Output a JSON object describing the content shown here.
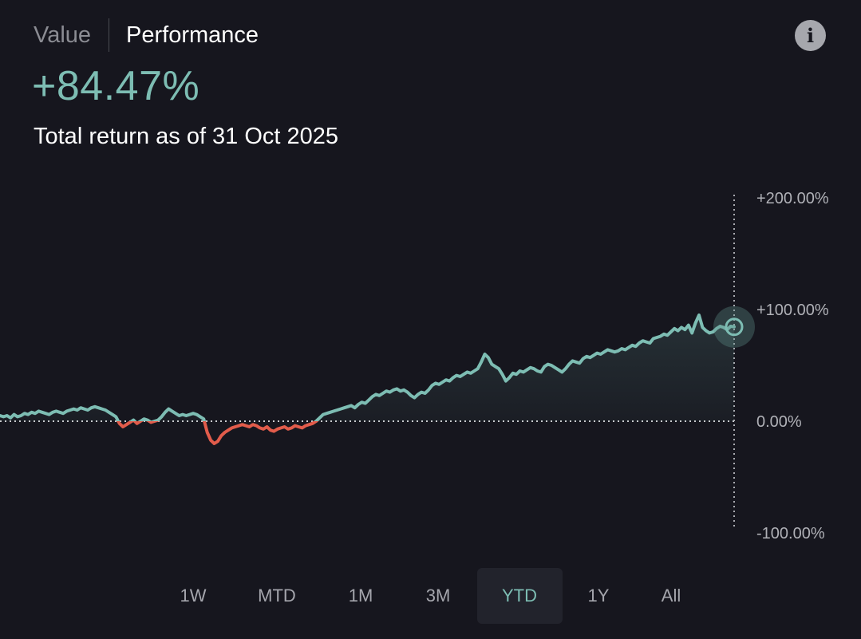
{
  "tabs": [
    {
      "label": "Value",
      "active": false
    },
    {
      "label": "Performance",
      "active": true
    }
  ],
  "info_icon": "info-icon",
  "info_glyph": "i",
  "total_return": "+84.47%",
  "caption": "Total return as of 31 Oct 2025",
  "colors": {
    "positive": "#7dbdb3",
    "negative": "#e25c4b",
    "background": "#16161e",
    "axis_text": "#b0b1b7",
    "selected_range_bg": "#22232c"
  },
  "ranges": [
    "1W",
    "MTD",
    "1M",
    "3M",
    "YTD",
    "1Y",
    "All"
  ],
  "selected_range": "YTD",
  "chart_data": {
    "type": "line",
    "ylim": [
      -100,
      200
    ],
    "y_ticks": [
      "+200.00%",
      "+100.00%",
      "0.00%",
      "-100.00%"
    ],
    "y_tick_values": [
      200,
      100,
      0,
      -100
    ],
    "grid": false,
    "baseline": 0,
    "last_value": 84.47,
    "values": [
      5,
      4,
      5,
      3,
      6,
      4,
      5,
      7,
      6,
      8,
      7,
      9,
      8,
      7,
      6,
      8,
      9,
      8,
      7,
      9,
      10,
      11,
      10,
      12,
      11,
      10,
      12,
      13,
      12,
      11,
      10,
      8,
      6,
      4,
      -2,
      -5,
      -3,
      -1,
      1,
      -2,
      0,
      2,
      1,
      -1,
      0,
      1,
      4,
      8,
      11,
      9,
      7,
      5,
      6,
      5,
      6,
      7,
      6,
      4,
      2,
      -10,
      -17,
      -20,
      -18,
      -13,
      -10,
      -8,
      -6,
      -5,
      -4,
      -3,
      -4,
      -5,
      -3,
      -4,
      -6,
      -7,
      -5,
      -8,
      -9,
      -7,
      -6,
      -5,
      -7,
      -6,
      -4,
      -5,
      -6,
      -4,
      -3,
      -2,
      0,
      3,
      6,
      7,
      8,
      9,
      10,
      11,
      12,
      13,
      14,
      12,
      15,
      17,
      16,
      19,
      22,
      24,
      23,
      25,
      27,
      26,
      28,
      29,
      27,
      28,
      26,
      23,
      21,
      24,
      26,
      25,
      28,
      32,
      34,
      33,
      35,
      37,
      36,
      39,
      41,
      40,
      42,
      44,
      43,
      45,
      47,
      53,
      60,
      57,
      51,
      49,
      47,
      42,
      36,
      39,
      43,
      42,
      45,
      44,
      46,
      48,
      47,
      45,
      44,
      49,
      51,
      50,
      48,
      46,
      44,
      47,
      51,
      54,
      53,
      52,
      56,
      58,
      57,
      59,
      61,
      60,
      62,
      64,
      63,
      62,
      63,
      65,
      64,
      66,
      68,
      67,
      70,
      72,
      71,
      70,
      74,
      75,
      76,
      78,
      77,
      80,
      83,
      81,
      84,
      82,
      86,
      79,
      88,
      95,
      84,
      81,
      79,
      80,
      83,
      85,
      84,
      82,
      85,
      84.47
    ]
  }
}
